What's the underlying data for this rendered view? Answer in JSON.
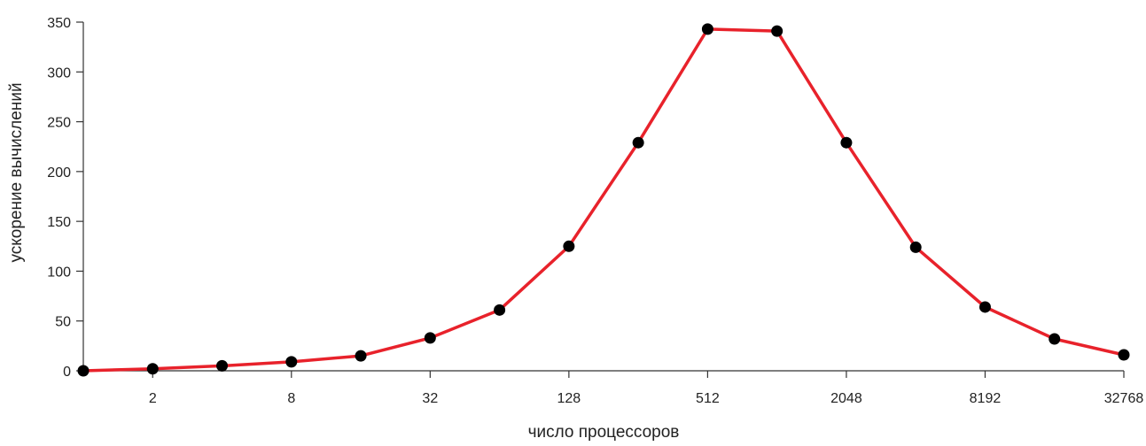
{
  "chart_data": {
    "type": "line",
    "title": "",
    "xlabel": "число процессоров",
    "ylabel": "ускорение вычислений",
    "x_scale": "log2",
    "xlim": [
      1,
      32768
    ],
    "ylim": [
      0,
      350
    ],
    "x_ticks": [
      2,
      8,
      32,
      128,
      512,
      2048,
      8192,
      32768
    ],
    "x_tick_labels": [
      "2",
      "8",
      "32",
      "128",
      "512",
      "2048",
      "8192",
      "32768"
    ],
    "y_ticks": [
      0,
      50,
      100,
      150,
      200,
      250,
      300,
      350
    ],
    "y_tick_labels": [
      "0",
      "50",
      "100",
      "150",
      "200",
      "250",
      "300",
      "350"
    ],
    "grid": false,
    "legend": "none",
    "series": [
      {
        "color": "#e8222b",
        "marker_color": "#000000",
        "x": [
          1,
          2,
          4,
          8,
          16,
          32,
          64,
          128,
          256,
          512,
          1024,
          2048,
          4096,
          8192,
          16384,
          32768
        ],
        "y": [
          0,
          2,
          5,
          9,
          15,
          33,
          61,
          125,
          229,
          343,
          341,
          229,
          124,
          64,
          32,
          16
        ]
      }
    ]
  }
}
